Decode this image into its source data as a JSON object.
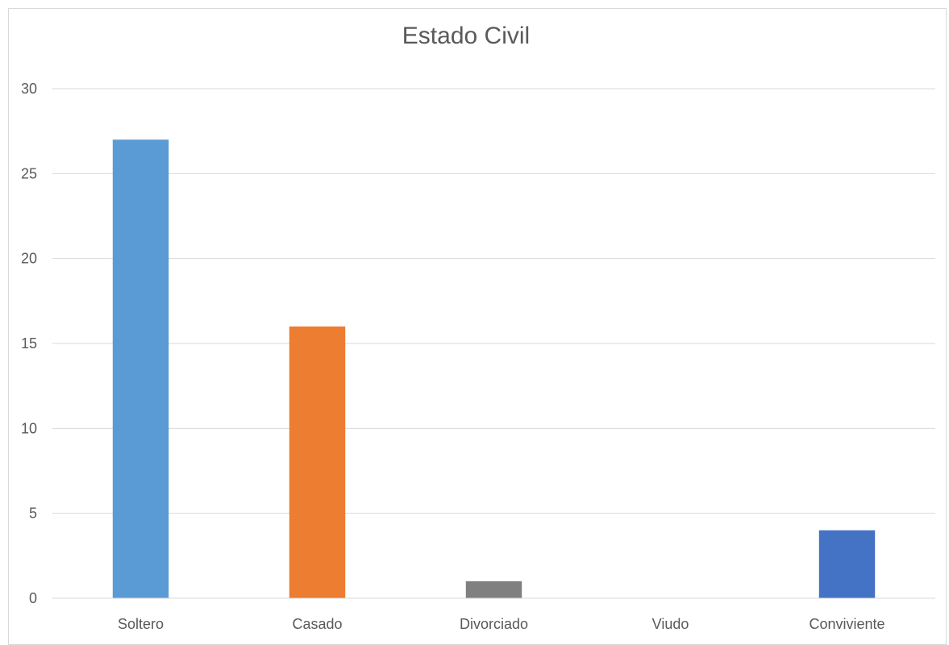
{
  "chart_data": {
    "type": "bar",
    "title": "Estado Civil",
    "xlabel": "",
    "ylabel": "",
    "categories": [
      "Soltero",
      "Casado",
      "Divorciado",
      "Viudo",
      "Conviviente"
    ],
    "values": [
      27,
      16,
      1,
      0,
      4
    ],
    "colors": [
      "#5b9bd5",
      "#ed7d31",
      "#808080",
      "#ffc000",
      "#4472c4"
    ],
    "ylim": [
      0,
      30
    ],
    "yticks": [
      0,
      5,
      10,
      15,
      20,
      25,
      30
    ],
    "grid": true,
    "legend": "none"
  }
}
